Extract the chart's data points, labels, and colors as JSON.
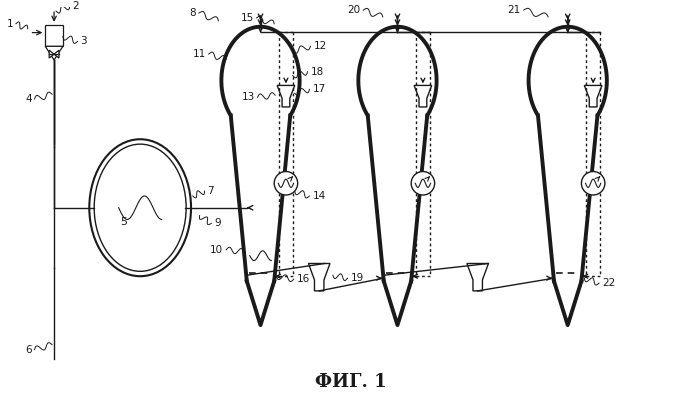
{
  "bg_color": "#ffffff",
  "line_color": "#1a1a1a",
  "caption": "ФИГ. 1",
  "lw_reactor": 2.8,
  "lw_pipe": 1.0,
  "lw_thin": 0.9
}
